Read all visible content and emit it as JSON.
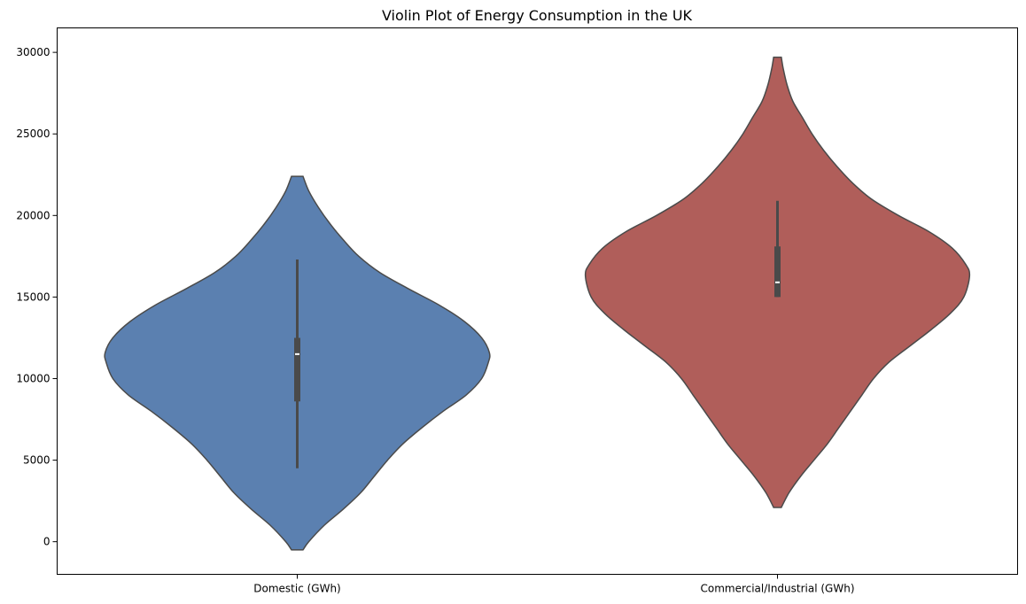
{
  "chart_data": {
    "type": "violin",
    "title": "Violin Plot of Energy Consumption in the UK",
    "xlabel": "",
    "ylabel": "",
    "ylim": [
      -2000,
      31500
    ],
    "yticks": [
      0,
      5000,
      10000,
      15000,
      20000,
      25000,
      30000
    ],
    "ytick_labels": [
      "0",
      "5000",
      "10000",
      "15000",
      "20000",
      "25000",
      "30000"
    ],
    "categories": [
      "Domestic (GWh)",
      "Commercial/Industrial (GWh)"
    ],
    "grid": false,
    "series": [
      {
        "color": "#5b80b0",
        "kde_range": [
          -500,
          22400
        ],
        "max_half_width": 0.4,
        "profile": [
          [
            -500,
            0.03
          ],
          [
            0,
            0.06
          ],
          [
            1000,
            0.14
          ],
          [
            2000,
            0.24
          ],
          [
            3000,
            0.33
          ],
          [
            4000,
            0.4
          ],
          [
            5000,
            0.47
          ],
          [
            6000,
            0.55
          ],
          [
            7000,
            0.65
          ],
          [
            8000,
            0.76
          ],
          [
            9000,
            0.88
          ],
          [
            10000,
            0.96
          ],
          [
            11000,
            0.995
          ],
          [
            11600,
            1.0
          ],
          [
            12500,
            0.96
          ],
          [
            13500,
            0.87
          ],
          [
            14500,
            0.74
          ],
          [
            15500,
            0.58
          ],
          [
            16500,
            0.43
          ],
          [
            17500,
            0.32
          ],
          [
            18500,
            0.24
          ],
          [
            19500,
            0.17
          ],
          [
            20500,
            0.11
          ],
          [
            21500,
            0.06
          ],
          [
            22400,
            0.03
          ]
        ],
        "box": {
          "whisker_low": 4500,
          "q1": 8600,
          "median": 11500,
          "q3": 12500,
          "whisker_high": 17300
        }
      },
      {
        "color": "#b05e5a",
        "kde_range": [
          2100,
          29700
        ],
        "max_half_width": 0.4,
        "profile": [
          [
            2100,
            0.02
          ],
          [
            3000,
            0.06
          ],
          [
            4000,
            0.12
          ],
          [
            5000,
            0.19
          ],
          [
            6000,
            0.26
          ],
          [
            7000,
            0.32
          ],
          [
            8000,
            0.38
          ],
          [
            9000,
            0.44
          ],
          [
            10000,
            0.5
          ],
          [
            11000,
            0.58
          ],
          [
            12000,
            0.69
          ],
          [
            13000,
            0.8
          ],
          [
            14000,
            0.9
          ],
          [
            15000,
            0.97
          ],
          [
            16300,
            1.0
          ],
          [
            17000,
            0.98
          ],
          [
            18000,
            0.91
          ],
          [
            19000,
            0.79
          ],
          [
            20000,
            0.63
          ],
          [
            21000,
            0.49
          ],
          [
            22000,
            0.39
          ],
          [
            23000,
            0.31
          ],
          [
            24000,
            0.24
          ],
          [
            25000,
            0.18
          ],
          [
            26000,
            0.13
          ],
          [
            27000,
            0.08
          ],
          [
            28000,
            0.05
          ],
          [
            29000,
            0.03
          ],
          [
            29700,
            0.02
          ]
        ],
        "box": {
          "whisker_low": 15000,
          "q1": 15000,
          "median": 15900,
          "q3": 18100,
          "whisker_high": 20900
        }
      }
    ]
  }
}
